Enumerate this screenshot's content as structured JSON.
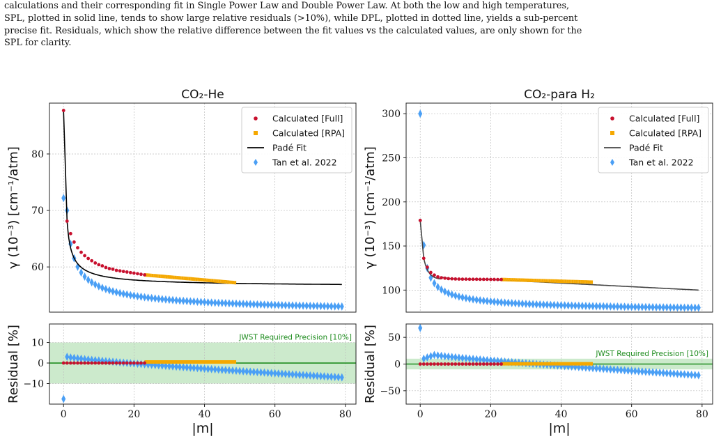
{
  "caption": {
    "line1": "calculations and their corresponding fit in Single Power Law and Double Power Law. At both the low and high temperatures,",
    "line2": "SPL, plotted in solid line, tends to show large relative residuals (>10%), while DPL, plotted in dotted line, yields a sub-percent",
    "line3": "precise fit. Residuals, which show the relative difference between the fit values vs the calculated values, are only shown for the",
    "line4": "SPL for clarity."
  },
  "legend": {
    "full": "Calculated [Full]",
    "rpa": "Calculated [RPA]",
    "pade": "Padé Fit",
    "tan": "Tan et al. 2022"
  },
  "colors": {
    "full": "#c8102e",
    "rpa": "#f5a800",
    "pade": "#000000",
    "tan": "#4a9ff5",
    "precision_band": "#8fd18f",
    "precision_text": "#1e8c1e",
    "zero_line": "#1e8c1e"
  },
  "chart_data": [
    {
      "type": "scatter",
      "panel": "top-left",
      "title": "CO₂-He",
      "ylabel": "γ (10⁻³) [cm⁻¹/atm]",
      "xlim": [
        -4,
        83
      ],
      "ylim": [
        52,
        89
      ],
      "yticks": [
        60,
        70,
        80
      ],
      "grid": true,
      "legend_position": "top-right",
      "series": [
        {
          "name": "Calculated [Full]",
          "x": [
            0,
            1,
            2,
            3,
            4,
            5,
            6,
            7,
            8,
            9,
            10,
            11,
            12,
            13,
            14,
            15,
            16,
            17,
            18,
            19,
            20,
            21,
            22,
            23
          ],
          "y": [
            87.7,
            68.1,
            65.9,
            64.4,
            63.4,
            62.6,
            62.0,
            61.5,
            61.1,
            60.7,
            60.4,
            60.2,
            59.9,
            59.7,
            59.6,
            59.4,
            59.3,
            59.2,
            59.1,
            59.0,
            58.9,
            58.8,
            58.7,
            58.6
          ]
        },
        {
          "name": "Calculated [RPA]",
          "x_range": [
            23,
            49
          ],
          "y_start": 58.6,
          "y_end": 57.2
        },
        {
          "name": "Padé Fit",
          "fit": "c + a/(x+b)^p",
          "y_at_0": 87.7,
          "y_at_79": 56.9
        },
        {
          "name": "Tan et al. 2022",
          "x_range": [
            0,
            79
          ],
          "y_at_0": 72.2,
          "y_at_1": 70.0,
          "y_at_79": 53.0
        }
      ]
    },
    {
      "type": "scatter",
      "panel": "bottom-left",
      "xlabel": "|m|",
      "ylabel": "Residual [%]",
      "xlim": [
        -4,
        83
      ],
      "ylim": [
        -20,
        19
      ],
      "xticks": [
        0,
        20,
        40,
        60,
        80
      ],
      "yticks": [
        -10,
        0,
        10
      ],
      "precision_band": [
        -10,
        10
      ],
      "annotation": "JWST Required Precision [10%]",
      "series": [
        {
          "name": "Calculated [Full]",
          "x_range": [
            0,
            23
          ],
          "y": 0.0
        },
        {
          "name": "Calculated [RPA]",
          "x_range": [
            23,
            49
          ],
          "y": 0.5
        },
        {
          "name": "Tan et al. 2022",
          "y_at_0": -17.5,
          "y_at_1": 3.0,
          "y_at_79": -7.0
        }
      ]
    },
    {
      "type": "scatter",
      "panel": "top-right",
      "title": "CO₂-para H₂",
      "ylabel": "γ (10⁻³) [cm⁻¹/atm]",
      "xlim": [
        -4,
        83
      ],
      "ylim": [
        75,
        312
      ],
      "yticks": [
        100,
        150,
        200,
        250,
        300
      ],
      "grid": true,
      "legend_position": "top-right",
      "series": [
        {
          "name": "Calculated [Full]",
          "x": [
            0,
            1,
            2,
            3,
            4,
            5,
            6,
            7,
            8,
            9,
            10,
            11,
            12,
            13,
            14,
            15,
            16,
            17,
            18,
            19,
            20,
            21,
            22,
            23
          ],
          "y": [
            179,
            136,
            126,
            120,
            117,
            115,
            114,
            113.5,
            113,
            112.8,
            112.6,
            112.5,
            112.4,
            112.4,
            112.3,
            112.3,
            112.3,
            112.2,
            112.2,
            112.2,
            112.1,
            112.1,
            112.0,
            112.0
          ]
        },
        {
          "name": "Calculated [RPA]",
          "x_range": [
            23,
            49
          ],
          "y_start": 112,
          "y_end": 109
        },
        {
          "name": "Padé Fit",
          "y_at_0": 179,
          "y_at_79": 100
        },
        {
          "name": "Tan et al. 2022",
          "x_range": [
            0,
            79
          ],
          "y_at_0": 300,
          "y_at_1": 151,
          "y_at_79": 80
        }
      ]
    },
    {
      "type": "scatter",
      "panel": "bottom-right",
      "xlabel": "|m|",
      "ylabel": "Residual [%]",
      "xlim": [
        -4,
        83
      ],
      "ylim": [
        -75,
        75
      ],
      "xticks": [
        0,
        20,
        40,
        60,
        80
      ],
      "yticks": [
        -50,
        0,
        50
      ],
      "precision_band": [
        -10,
        10
      ],
      "annotation": "JWST Required Precision [10%]",
      "series": [
        {
          "name": "Calculated [Full]",
          "x_range": [
            0,
            23
          ],
          "y": 0.0
        },
        {
          "name": "Calculated [RPA]",
          "x_range": [
            23,
            49
          ],
          "y": 0.5
        },
        {
          "name": "Tan et al. 2022",
          "y_at_0": 67.5,
          "y_peak": 17,
          "y_at_79": -21
        }
      ]
    }
  ],
  "page_number": ""
}
